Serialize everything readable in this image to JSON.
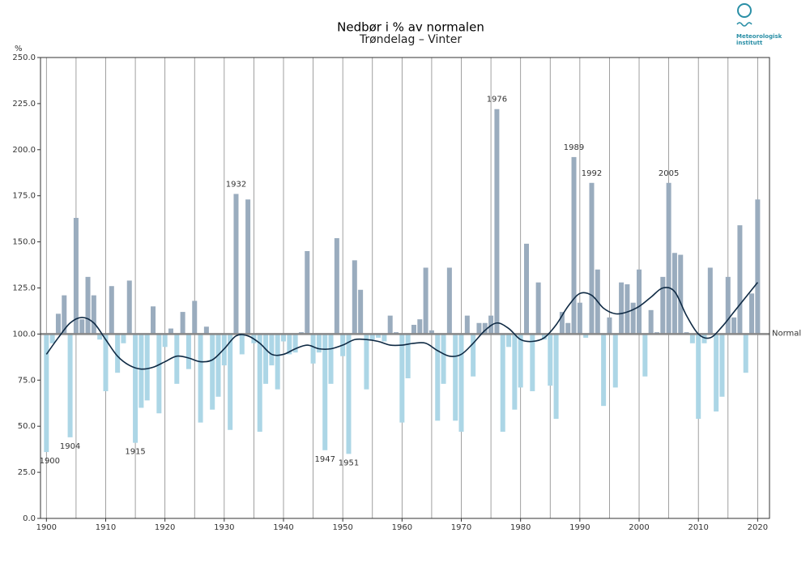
{
  "chart_data": {
    "type": "bar",
    "title": "Nedbør i % av normalen",
    "subtitle": "Trøndelag – Vinter",
    "y_unit": "%",
    "logo_text": [
      "Meteorologisk",
      "institutt"
    ],
    "x": [
      1900,
      1901,
      1902,
      1903,
      1904,
      1905,
      1906,
      1907,
      1908,
      1909,
      1910,
      1911,
      1912,
      1913,
      1914,
      1915,
      1916,
      1917,
      1918,
      1919,
      1920,
      1921,
      1922,
      1923,
      1924,
      1925,
      1926,
      1927,
      1928,
      1929,
      1930,
      1931,
      1932,
      1933,
      1934,
      1935,
      1936,
      1937,
      1938,
      1939,
      1940,
      1941,
      1942,
      1943,
      1944,
      1945,
      1946,
      1947,
      1948,
      1949,
      1950,
      1951,
      1952,
      1953,
      1954,
      1955,
      1956,
      1957,
      1958,
      1959,
      1960,
      1961,
      1962,
      1963,
      1964,
      1965,
      1966,
      1967,
      1968,
      1969,
      1970,
      1971,
      1972,
      1973,
      1974,
      1975,
      1976,
      1977,
      1978,
      1979,
      1980,
      1981,
      1982,
      1983,
      1984,
      1985,
      1986,
      1987,
      1988,
      1989,
      1990,
      1991,
      1992,
      1993,
      1994,
      1995,
      1996,
      1997,
      1998,
      1999,
      2000,
      2001,
      2002,
      2003,
      2004,
      2005,
      2006,
      2007,
      2008,
      2009,
      2010,
      2011,
      2012,
      2013,
      2014,
      2015,
      2016,
      2017,
      2018,
      2019,
      2020
    ],
    "values": [
      36,
      95,
      111,
      121,
      44,
      163,
      108,
      131,
      121,
      97,
      69,
      126,
      79,
      95,
      129,
      41,
      60,
      64,
      115,
      57,
      93,
      103,
      73,
      112,
      81,
      118,
      52,
      104,
      59,
      66,
      83,
      48,
      176,
      89,
      173,
      95,
      47,
      73,
      83,
      70,
      96,
      89,
      90,
      101,
      145,
      84,
      90,
      37,
      73,
      152,
      88,
      35,
      140,
      124,
      70,
      97,
      98,
      96,
      110,
      101,
      52,
      76,
      105,
      108,
      136,
      102,
      53,
      73,
      136,
      53,
      47,
      110,
      77,
      106,
      106,
      110,
      222,
      47,
      93,
      59,
      71,
      149,
      69,
      128,
      97,
      72,
      54,
      112,
      106,
      196,
      117,
      98,
      182,
      135,
      61,
      109,
      71,
      128,
      127,
      117,
      135,
      77,
      113,
      101,
      131,
      182,
      144,
      143,
      101,
      95,
      54,
      95,
      136,
      58,
      66,
      131,
      109,
      159,
      79,
      122,
      173
    ],
    "colors": {
      "above": "#9aacbe",
      "below": "#acd6e6",
      "trend": "#0f2a44"
    },
    "reference_line": {
      "value": 100,
      "label": "Normal"
    },
    "trend": {
      "x": [
        1900,
        1902,
        1904,
        1906,
        1908,
        1910,
        1912,
        1914,
        1916,
        1918,
        1920,
        1922,
        1924,
        1926,
        1928,
        1930,
        1932,
        1934,
        1936,
        1938,
        1940,
        1942,
        1944,
        1946,
        1948,
        1950,
        1952,
        1954,
        1956,
        1958,
        1960,
        1962,
        1964,
        1966,
        1968,
        1970,
        1972,
        1974,
        1976,
        1978,
        1980,
        1982,
        1984,
        1986,
        1988,
        1990,
        1992,
        1994,
        1996,
        1998,
        2000,
        2002,
        2004,
        2006,
        2008,
        2010,
        2012,
        2014,
        2016,
        2018,
        2020
      ],
      "values": [
        89,
        98,
        106,
        109,
        106,
        97,
        88,
        83,
        81,
        82,
        85,
        88,
        87,
        85,
        86,
        92,
        99,
        99,
        95,
        89,
        89,
        92,
        94,
        92,
        92,
        94,
        97,
        97,
        96,
        94,
        94,
        95,
        95,
        91,
        88,
        89,
        95,
        102,
        106,
        103,
        97,
        96,
        98,
        105,
        115,
        122,
        121,
        114,
        111,
        112,
        115,
        120,
        125,
        123,
        110,
        100,
        98,
        104,
        112,
        120,
        128
      ]
    },
    "annotations": [
      {
        "year": 1900,
        "label": "1900"
      },
      {
        "year": 1904,
        "label": "1904"
      },
      {
        "year": 1915,
        "label": "1915"
      },
      {
        "year": 1932,
        "label": "1932"
      },
      {
        "year": 1947,
        "label": "1947"
      },
      {
        "year": 1951,
        "label": "1951"
      },
      {
        "year": 1976,
        "label": "1976"
      },
      {
        "year": 1989,
        "label": "1989"
      },
      {
        "year": 1992,
        "label": "1992"
      },
      {
        "year": 2005,
        "label": "2005"
      }
    ],
    "xlim": [
      1899,
      2022
    ],
    "xticks": [
      1900,
      1910,
      1920,
      1930,
      1940,
      1950,
      1960,
      1970,
      1980,
      1990,
      2000,
      2010,
      2020
    ],
    "xgrid": [
      1900,
      1905,
      1910,
      1915,
      1920,
      1925,
      1930,
      1935,
      1940,
      1945,
      1950,
      1955,
      1960,
      1965,
      1970,
      1975,
      1980,
      1985,
      1990,
      1995,
      2000,
      2005,
      2010,
      2015,
      2020
    ],
    "ylim": [
      0,
      250
    ],
    "yticks": [
      {
        "value": 0,
        "label": "0.0"
      },
      {
        "value": 25,
        "label": "25.0"
      },
      {
        "value": 50,
        "label": "50.0"
      },
      {
        "value": 75,
        "label": "75.0"
      },
      {
        "value": 100,
        "label": "100.0"
      },
      {
        "value": 125,
        "label": "125.0"
      },
      {
        "value": 150,
        "label": "150.0"
      },
      {
        "value": 175,
        "label": "175.0"
      },
      {
        "value": 200,
        "label": "200.0"
      },
      {
        "value": 225,
        "label": "225.0"
      },
      {
        "value": 250,
        "label": "250.0"
      }
    ]
  }
}
